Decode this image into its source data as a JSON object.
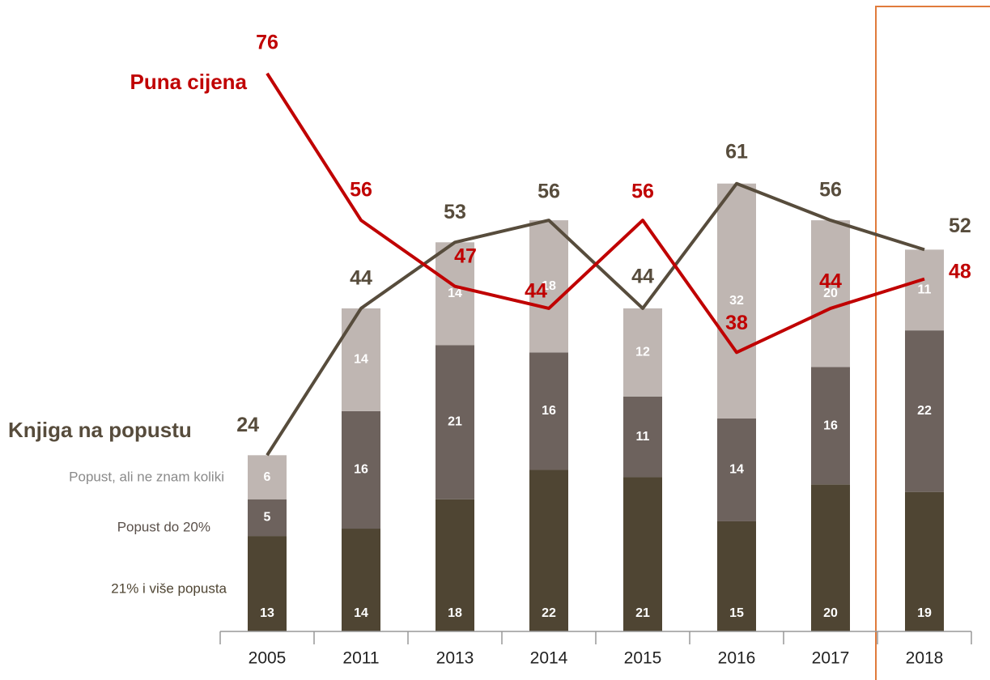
{
  "chart_data": {
    "type": "bar",
    "stacked": true,
    "categories": [
      "2005",
      "2011",
      "2013",
      "2014",
      "2015",
      "2016",
      "2017",
      "2018"
    ],
    "ylim": [
      0,
      86
    ],
    "series": [
      {
        "name": "21% i više popusta",
        "color": "#4f4533",
        "values": [
          13,
          14,
          18,
          22,
          21,
          15,
          20,
          19
        ]
      },
      {
        "name": "Popust do 20%",
        "color": "#6d625d",
        "values": [
          5,
          16,
          21,
          16,
          11,
          14,
          16,
          22
        ]
      },
      {
        "name": "Popust, ali ne znam koliki",
        "color": "#bfb6b2",
        "values": [
          6,
          14,
          14,
          18,
          12,
          32,
          20,
          11
        ]
      }
    ],
    "lines": [
      {
        "name": "Knjiga na popustu",
        "color": "#574c3c",
        "values": [
          24,
          44,
          53,
          56,
          44,
          61,
          56,
          52
        ]
      },
      {
        "name": "Puna cijena",
        "color": "#c00000",
        "values": [
          76,
          56,
          47,
          44,
          56,
          38,
          44,
          48
        ]
      }
    ]
  }
}
